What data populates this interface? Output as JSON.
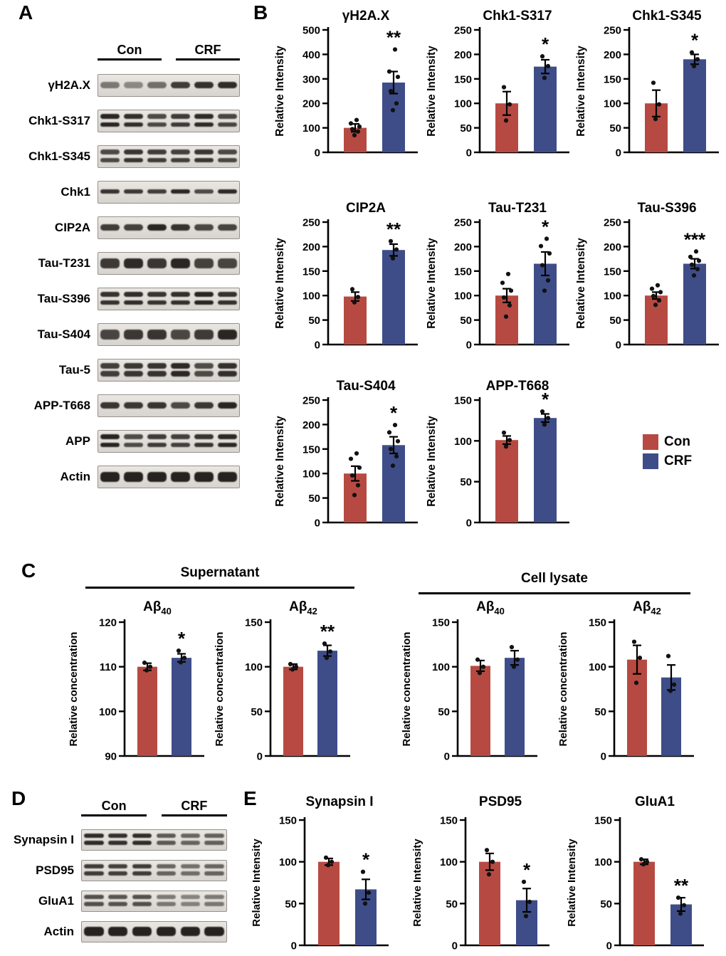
{
  "colors": {
    "con": "#b64a42",
    "crf": "#3e4d88",
    "band": "#171310"
  },
  "panelA": {
    "letter": "A",
    "group_labels": [
      "Con",
      "CRF"
    ],
    "rows": [
      {
        "label": "γH2A.X",
        "bands": 1,
        "dark": [
          0.5,
          0.42,
          0.55,
          0.8,
          0.85,
          0.88
        ]
      },
      {
        "label": "Chk1-S317",
        "bands": 2
      },
      {
        "label": "Chk1-S345",
        "bands": 2
      },
      {
        "label": "Chk1",
        "bands": 1,
        "thin": true
      },
      {
        "label": "CIP2A",
        "bands": 1
      },
      {
        "label": "Tau-T231",
        "bands": 1,
        "thick": true
      },
      {
        "label": "Tau-S396",
        "bands": 2
      },
      {
        "label": "Tau-S404",
        "bands": 1,
        "thick": true
      },
      {
        "label": "Tau-5",
        "bands": 2,
        "thick": true
      },
      {
        "label": "APP-T668",
        "bands": 1
      },
      {
        "label": "APP",
        "bands": 2
      },
      {
        "label": "Actin",
        "bands": 1,
        "thick": true,
        "dark": [
          0.92,
          0.92,
          0.92,
          0.92,
          0.92,
          0.92
        ]
      }
    ]
  },
  "panelB": {
    "letter": "B",
    "legend": [
      {
        "label": "Con",
        "color": "#b64a42"
      },
      {
        "label": "CRF",
        "color": "#3e4d88"
      }
    ]
  },
  "panelC": {
    "letter": "C",
    "groups": [
      "Supernatant",
      "Cell lysate"
    ]
  },
  "panelD": {
    "letter": "D",
    "group_labels": [
      "Con",
      "CRF"
    ],
    "rows": [
      {
        "label": "Synapsin I",
        "bands": 2,
        "dark": [
          0.88,
          0.85,
          0.87,
          0.65,
          0.6,
          0.62
        ]
      },
      {
        "label": "PSD95",
        "bands": 2,
        "dark": [
          0.8,
          0.78,
          0.8,
          0.6,
          0.55,
          0.6
        ]
      },
      {
        "label": "GluA1",
        "bands": 2,
        "dark": [
          0.7,
          0.68,
          0.7,
          0.5,
          0.45,
          0.5
        ]
      },
      {
        "label": "Actin",
        "bands": 1,
        "thick": true,
        "dark": [
          0.92,
          0.92,
          0.92,
          0.92,
          0.92,
          0.92
        ]
      }
    ]
  },
  "panelE": {
    "letter": "E"
  },
  "chart_data": [
    {
      "panel": "B",
      "type": "bar",
      "title": "γH2A.X",
      "ylabel": "Relative Intensity",
      "ymin": 0,
      "ymax": 500,
      "ticks": [
        0,
        100,
        200,
        300,
        400,
        500
      ],
      "sig": "**",
      "series": [
        {
          "name": "Con",
          "mean": 100,
          "err": 16,
          "points": [
            70,
            85,
            95,
            105,
            118,
            132
          ]
        },
        {
          "name": "CRF",
          "mean": 285,
          "err": 45,
          "points": [
            172,
            200,
            250,
            308,
            330,
            420
          ]
        }
      ]
    },
    {
      "panel": "B",
      "type": "bar",
      "title": "Chk1-S317",
      "ylabel": "Relative Intensity",
      "ymin": 0,
      "ymax": 250,
      "ticks": [
        0,
        50,
        100,
        150,
        200,
        250
      ],
      "sig": "*",
      "series": [
        {
          "name": "Con",
          "mean": 100,
          "err": 24,
          "points": [
            65,
            98,
            133
          ]
        },
        {
          "name": "CRF",
          "mean": 175,
          "err": 14,
          "points": [
            152,
            176,
            196
          ]
        }
      ]
    },
    {
      "panel": "B",
      "type": "bar",
      "title": "Chk1-S345",
      "ylabel": "Relative Intensity",
      "ymin": 0,
      "ymax": 250,
      "ticks": [
        0,
        50,
        100,
        150,
        200,
        250
      ],
      "sig": "*",
      "series": [
        {
          "name": "Con",
          "mean": 100,
          "err": 27,
          "points": [
            68,
            98,
            142
          ]
        },
        {
          "name": "CRF",
          "mean": 190,
          "err": 10,
          "points": [
            176,
            190,
            204
          ]
        }
      ]
    },
    {
      "panel": "B",
      "type": "bar",
      "title": "CIP2A",
      "ylabel": "Relative Intensity",
      "ymin": 0,
      "ymax": 250,
      "ticks": [
        0,
        50,
        100,
        150,
        200,
        250
      ],
      "sig": "**",
      "series": [
        {
          "name": "Con",
          "mean": 98,
          "err": 9,
          "points": [
            86,
            97,
            113
          ]
        },
        {
          "name": "CRF",
          "mean": 193,
          "err": 12,
          "points": [
            176,
            194,
            211
          ]
        }
      ]
    },
    {
      "panel": "B",
      "type": "bar",
      "title": "Tau-T231",
      "ylabel": "Relative Intensity",
      "ymin": 0,
      "ymax": 250,
      "ticks": [
        0,
        50,
        100,
        150,
        200,
        250
      ],
      "sig": "*",
      "series": [
        {
          "name": "Con",
          "mean": 100,
          "err": 14,
          "points": [
            57,
            80,
            96,
            110,
            126,
            144
          ]
        },
        {
          "name": "CRF",
          "mean": 165,
          "err": 24,
          "points": [
            110,
            131,
            162,
            186,
            201,
            216
          ]
        }
      ]
    },
    {
      "panel": "B",
      "type": "bar",
      "title": "Tau-S396",
      "ylabel": "Relative Intensity",
      "ymin": 0,
      "ymax": 250,
      "ticks": [
        0,
        50,
        100,
        150,
        200,
        250
      ],
      "sig": "***",
      "series": [
        {
          "name": "Con",
          "mean": 100,
          "err": 7,
          "points": [
            81,
            90,
            99,
            107,
            114,
            121
          ]
        },
        {
          "name": "CRF",
          "mean": 165,
          "err": 10,
          "points": [
            141,
            154,
            163,
            171,
            179,
            190
          ]
        }
      ]
    },
    {
      "panel": "B",
      "type": "bar",
      "title": "Tau-S404",
      "ylabel": "Relative Intensity",
      "ymin": 0,
      "ymax": 250,
      "ticks": [
        0,
        50,
        100,
        150,
        200,
        250
      ],
      "sig": "*",
      "series": [
        {
          "name": "Con",
          "mean": 100,
          "err": 15,
          "points": [
            56,
            76,
            96,
            112,
            130,
            141
          ]
        },
        {
          "name": "CRF",
          "mean": 158,
          "err": 17,
          "points": [
            116,
            135,
            150,
            166,
            184,
            199
          ]
        }
      ]
    },
    {
      "panel": "B",
      "type": "bar",
      "title": "APP-T668",
      "ylabel": "Relative Intensity",
      "ymin": 0,
      "ymax": 150,
      "ticks": [
        0,
        50,
        100,
        150
      ],
      "sig": "*",
      "series": [
        {
          "name": "Con",
          "mean": 101,
          "err": 5,
          "points": [
            93,
            101,
            110
          ]
        },
        {
          "name": "CRF",
          "mean": 128,
          "err": 5,
          "points": [
            120,
            128,
            136
          ]
        }
      ]
    },
    {
      "panel": "C",
      "type": "bar",
      "title": "Aβ",
      "title_sub": "40",
      "ylabel": "Relative concentration",
      "ymin": 90,
      "ymax": 120,
      "ticks": [
        90,
        100,
        110,
        120
      ],
      "sig": "*",
      "series": [
        {
          "name": "Con",
          "mean": 110,
          "err": 0.8,
          "points": [
            109.2,
            110,
            110.9
          ]
        },
        {
          "name": "CRF",
          "mean": 112,
          "err": 0.9,
          "points": [
            111,
            112,
            113.6
          ]
        }
      ]
    },
    {
      "panel": "C",
      "type": "bar",
      "title": "Aβ",
      "title_sub": "42",
      "ylabel": "Relative concentration",
      "ymin": 0,
      "ymax": 150,
      "ticks": [
        0,
        50,
        100,
        150
      ],
      "sig": "**",
      "series": [
        {
          "name": "Con",
          "mean": 100,
          "err": 3,
          "points": [
            97,
            100,
            103
          ]
        },
        {
          "name": "CRF",
          "mean": 118,
          "err": 6,
          "points": [
            110,
            117,
            126
          ]
        }
      ]
    },
    {
      "panel": "C",
      "type": "bar",
      "title": "Aβ",
      "title_sub": "40",
      "ylabel": "Relative concentration",
      "ymin": 0,
      "ymax": 150,
      "ticks": [
        0,
        50,
        100,
        150
      ],
      "sig": "",
      "series": [
        {
          "name": "Con",
          "mean": 101,
          "err": 6,
          "points": [
            93,
            100,
            108
          ]
        },
        {
          "name": "CRF",
          "mean": 110,
          "err": 8,
          "points": [
            100,
            108,
            122
          ]
        }
      ]
    },
    {
      "panel": "C",
      "type": "bar",
      "title": "Aβ",
      "title_sub": "42",
      "ylabel": "Relative concentration",
      "ymin": 0,
      "ymax": 150,
      "ticks": [
        0,
        50,
        100,
        150
      ],
      "sig": "",
      "series": [
        {
          "name": "Con",
          "mean": 108,
          "err": 16,
          "points": [
            82,
            110,
            128
          ]
        },
        {
          "name": "CRF",
          "mean": 88,
          "err": 14,
          "points": [
            73,
            80,
            112
          ]
        }
      ]
    },
    {
      "panel": "E",
      "type": "bar",
      "title": "Synapsin I",
      "ylabel": "Relative Intensity",
      "ymin": 0,
      "ymax": 150,
      "ticks": [
        0,
        50,
        100,
        150
      ],
      "sig": "*",
      "series": [
        {
          "name": "Con",
          "mean": 100,
          "err": 4,
          "points": [
            96,
            100,
            105
          ]
        },
        {
          "name": "CRF",
          "mean": 67,
          "err": 12,
          "points": [
            50,
            63,
            88
          ]
        }
      ]
    },
    {
      "panel": "E",
      "type": "bar",
      "title": "PSD95",
      "ylabel": "Relative Intensity",
      "ymin": 0,
      "ymax": 150,
      "ticks": [
        0,
        50,
        100,
        150
      ],
      "sig": "*",
      "series": [
        {
          "name": "Con",
          "mean": 100,
          "err": 10,
          "points": [
            85,
            100,
            114
          ]
        },
        {
          "name": "CRF",
          "mean": 54,
          "err": 14,
          "points": [
            35,
            52,
            76
          ]
        }
      ]
    },
    {
      "panel": "E",
      "type": "bar",
      "title": "GluA1",
      "ylabel": "Relative Intensity",
      "ymin": 0,
      "ymax": 150,
      "ticks": [
        0,
        50,
        100,
        150
      ],
      "sig": "**",
      "series": [
        {
          "name": "Con",
          "mean": 100,
          "err": 3,
          "points": [
            97,
            100,
            103
          ]
        },
        {
          "name": "CRF",
          "mean": 49,
          "err": 8,
          "points": [
            38,
            48,
            57
          ]
        }
      ]
    }
  ]
}
